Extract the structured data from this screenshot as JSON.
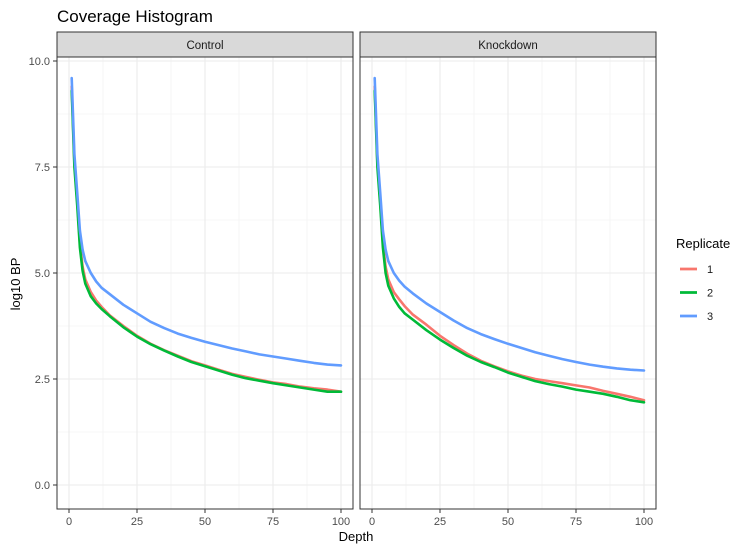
{
  "chart_data": {
    "type": "line",
    "title": "Coverage Histogram",
    "xlabel": "Depth",
    "ylabel": "log10 BP",
    "xlim": [
      0,
      100
    ],
    "ylim": [
      0,
      10
    ],
    "x_ticks": [
      0,
      25,
      50,
      75,
      100
    ],
    "y_ticks": [
      "0.0",
      "2.5",
      "5.0",
      "7.5",
      "10.0"
    ],
    "grid": true,
    "legend": {
      "title": "Replicate",
      "placement": "right",
      "entries": [
        "1",
        "2",
        "3"
      ]
    },
    "x": [
      1,
      2,
      3,
      4,
      5,
      6,
      8,
      10,
      12,
      15,
      20,
      25,
      30,
      35,
      40,
      45,
      50,
      55,
      60,
      65,
      70,
      75,
      80,
      85,
      90,
      95,
      100
    ],
    "panels": [
      {
        "label": "Control",
        "series": [
          {
            "name": "1",
            "color": "#F8766D",
            "values": [
              9.4,
              7.6,
              6.7,
              5.7,
              5.15,
              4.85,
              4.55,
              4.35,
              4.2,
              4.0,
              3.75,
              3.52,
              3.33,
              3.18,
              3.05,
              2.92,
              2.82,
              2.72,
              2.62,
              2.55,
              2.48,
              2.42,
              2.38,
              2.32,
              2.28,
              2.25,
              2.2
            ]
          },
          {
            "name": "2",
            "color": "#00BA38",
            "values": [
              9.3,
              7.5,
              6.6,
              5.6,
              5.05,
              4.75,
              4.45,
              4.28,
              4.15,
              3.98,
              3.72,
              3.5,
              3.32,
              3.17,
              3.03,
              2.9,
              2.8,
              2.7,
              2.6,
              2.52,
              2.46,
              2.4,
              2.35,
              2.3,
              2.25,
              2.2,
              2.2
            ]
          },
          {
            "name": "3",
            "color": "#619CFF",
            "values": [
              9.6,
              7.8,
              6.9,
              6.0,
              5.55,
              5.28,
              5.0,
              4.8,
              4.65,
              4.5,
              4.25,
              4.05,
              3.85,
              3.7,
              3.57,
              3.47,
              3.38,
              3.3,
              3.22,
              3.15,
              3.08,
              3.03,
              2.98,
              2.93,
              2.88,
              2.84,
              2.82
            ]
          }
        ]
      },
      {
        "label": "Knockdown",
        "series": [
          {
            "name": "1",
            "color": "#F8766D",
            "values": [
              9.4,
              7.6,
              6.7,
              5.7,
              5.15,
              4.85,
              4.55,
              4.38,
              4.22,
              4.02,
              3.78,
              3.52,
              3.3,
              3.1,
              2.93,
              2.8,
              2.68,
              2.58,
              2.5,
              2.45,
              2.4,
              2.35,
              2.3,
              2.22,
              2.15,
              2.08,
              2.0
            ]
          },
          {
            "name": "2",
            "color": "#00BA38",
            "values": [
              9.3,
              7.5,
              6.6,
              5.6,
              5.0,
              4.7,
              4.4,
              4.2,
              4.05,
              3.9,
              3.65,
              3.43,
              3.23,
              3.05,
              2.9,
              2.78,
              2.65,
              2.55,
              2.45,
              2.38,
              2.32,
              2.25,
              2.2,
              2.15,
              2.08,
              2.0,
              1.95
            ]
          },
          {
            "name": "3",
            "color": "#619CFF",
            "values": [
              9.6,
              7.8,
              6.9,
              6.0,
              5.55,
              5.28,
              5.0,
              4.82,
              4.68,
              4.52,
              4.28,
              4.08,
              3.88,
              3.7,
              3.56,
              3.44,
              3.33,
              3.23,
              3.13,
              3.05,
              2.97,
              2.9,
              2.84,
              2.79,
              2.75,
              2.72,
              2.7
            ]
          }
        ]
      }
    ]
  }
}
